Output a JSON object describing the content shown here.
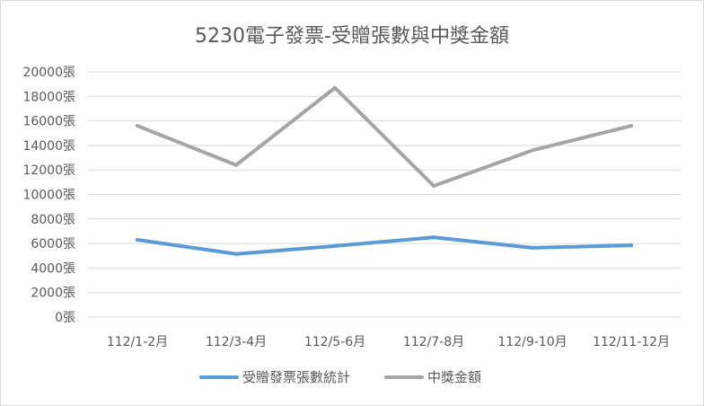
{
  "chart_data": {
    "type": "line",
    "title": "5230電子發票-受贈張數與中獎金額",
    "categories": [
      "112/1-2月",
      "112/3-4月",
      "112/5-6月",
      "112/7-8月",
      "112/9-10月",
      "112/11-12月"
    ],
    "y_tick_labels": [
      "0張",
      "2000張",
      "4000張",
      "6000張",
      "8000張",
      "10000張",
      "12000張",
      "14000張",
      "16000張",
      "18000張",
      "20000張"
    ],
    "ylim": [
      0,
      20000
    ],
    "grid": true,
    "legend_position": "bottom",
    "series": [
      {
        "name": "受贈發票張數統計",
        "color": "#5b9bd5",
        "values": [
          6300,
          5150,
          5800,
          6500,
          5650,
          5850
        ]
      },
      {
        "name": "中獎金額",
        "color": "#a5a5a5",
        "values": [
          15600,
          12400,
          18700,
          10700,
          13600,
          15600
        ]
      }
    ]
  }
}
